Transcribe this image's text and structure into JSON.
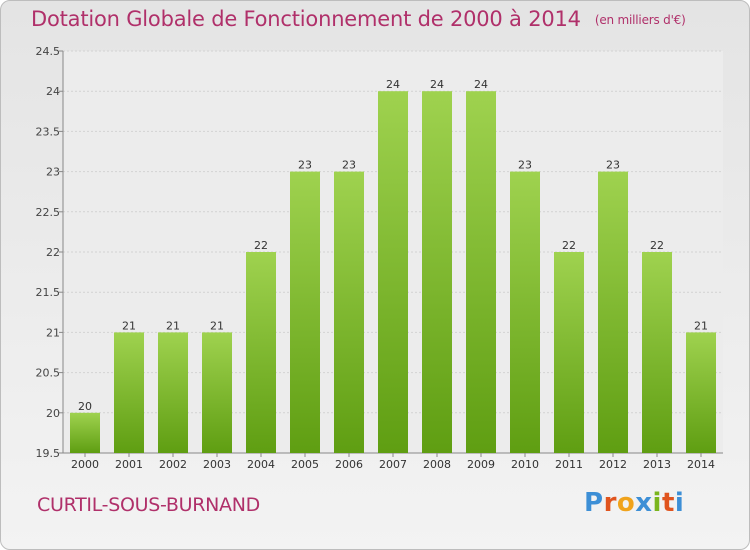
{
  "header": {
    "title": "Dotation Globale de Fonctionnement de 2000 à 2014",
    "unit": "(en milliers d'€)"
  },
  "footer": {
    "commune": "CURTIL-SOUS-BURNAND",
    "logo": [
      "P",
      "r",
      "o",
      "x",
      "i",
      "t",
      "i"
    ]
  },
  "colors": {
    "title": "#b0306a",
    "bar_top": "#9fd24f",
    "bar_bottom": "#5f9e12",
    "logo": [
      "#3d8fd6",
      "#e0541e",
      "#f0a31c",
      "#3d8fd6",
      "#7ab51d",
      "#e0541e",
      "#3d8fd6"
    ]
  },
  "chart_data": {
    "type": "bar",
    "categories": [
      "2000",
      "2001",
      "2002",
      "2003",
      "2004",
      "2005",
      "2006",
      "2007",
      "2008",
      "2009",
      "2010",
      "2011",
      "2012",
      "2013",
      "2014"
    ],
    "values": [
      20,
      21,
      21,
      21,
      22,
      23,
      23,
      24,
      24,
      24,
      23,
      22,
      23,
      22,
      21
    ],
    "data_labels": [
      "20",
      "21",
      "21",
      "21",
      "22",
      "23",
      "23",
      "24",
      "24",
      "24",
      "23",
      "22",
      "23",
      "22",
      "21"
    ],
    "ylim": [
      19.5,
      24.5
    ],
    "yticks": [
      "19.5",
      "20",
      "20.5",
      "21",
      "21.5",
      "22",
      "22.5",
      "23",
      "23.5",
      "24",
      "24.5"
    ],
    "grid": true,
    "legend": "none"
  }
}
